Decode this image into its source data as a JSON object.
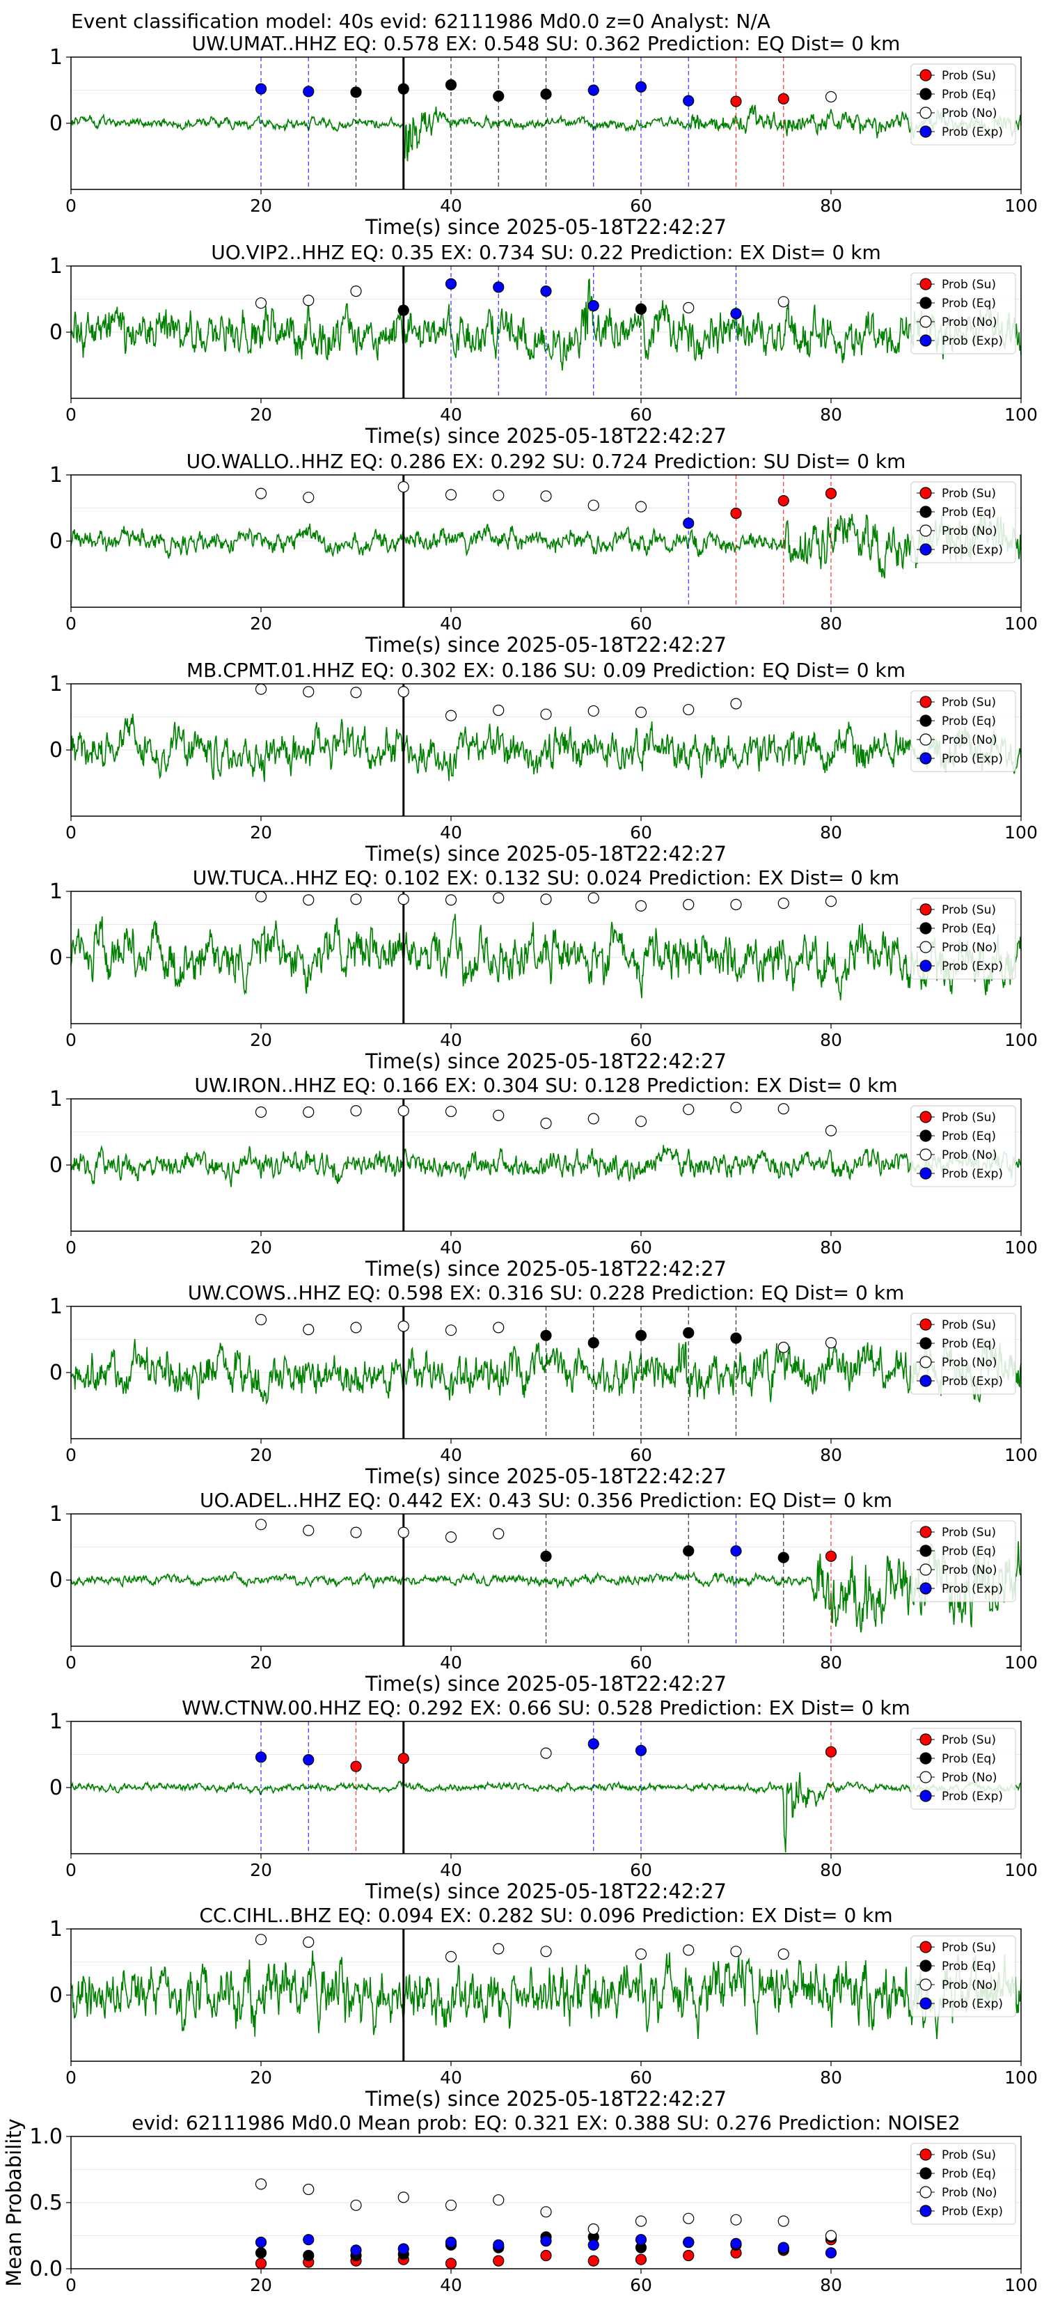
{
  "figure": {
    "suptitle": "Event classification model: 40s evid: 62111986 Md0.0 z=0 Analyst: N/A",
    "xlabel": "Time(s) since 2025-05-18T22:42:27",
    "legend": [
      "Prob (Su)",
      "Prob (Eq)",
      "Prob (No)",
      "Prob (Exp)"
    ],
    "colors": {
      "su": "#ff0000",
      "eq": "#000000",
      "no": "#ffffff",
      "exp": "#0000ff",
      "waveform": "#008000"
    }
  },
  "chart_data": [
    {
      "type": "line",
      "title": "UW.UMAT..HHZ   EQ: 0.578  EX: 0.548  SU: 0.362   Prediction: EQ    Dist= 0 km",
      "xlim": [
        0,
        100
      ],
      "ylim": [
        -1,
        1
      ],
      "xticks": [
        "0",
        "20",
        "40",
        "60",
        "80",
        "100"
      ],
      "yticks": [
        "1",
        "0"
      ],
      "waveform": {
        "amp": 0.1,
        "burst_at": 35,
        "burst_amp": 0.95,
        "late_start": 65,
        "late_amp": 0.22
      },
      "pick_time": 35,
      "points": [
        {
          "t": 20,
          "p": 0.52,
          "class": "exp"
        },
        {
          "t": 25,
          "p": 0.48,
          "class": "exp"
        },
        {
          "t": 30,
          "p": 0.47,
          "class": "eq"
        },
        {
          "t": 35,
          "p": 0.52,
          "class": "eq"
        },
        {
          "t": 40,
          "p": 0.58,
          "class": "eq"
        },
        {
          "t": 45,
          "p": 0.41,
          "class": "eq"
        },
        {
          "t": 50,
          "p": 0.44,
          "class": "eq"
        },
        {
          "t": 55,
          "p": 0.5,
          "class": "exp"
        },
        {
          "t": 60,
          "p": 0.55,
          "class": "exp"
        },
        {
          "t": 65,
          "p": 0.34,
          "class": "exp"
        },
        {
          "t": 70,
          "p": 0.33,
          "class": "su"
        },
        {
          "t": 75,
          "p": 0.37,
          "class": "su"
        },
        {
          "t": 80,
          "p": 0.4,
          "class": "no"
        }
      ]
    },
    {
      "type": "line",
      "title": "UO.VIP2..HHZ   EQ: 0.35  EX: 0.734  SU: 0.22   Prediction: EX    Dist= 0 km",
      "xlim": [
        0,
        100
      ],
      "ylim": [
        -1,
        1
      ],
      "xticks": [
        "0",
        "20",
        "40",
        "60",
        "80",
        "100"
      ],
      "yticks": [
        "1",
        "0"
      ],
      "waveform": {
        "amp": 0.45,
        "burst_at": 54,
        "burst_amp": 0.95,
        "late_start": 100,
        "late_amp": 0.45
      },
      "pick_time": 35,
      "points": [
        {
          "t": 20,
          "p": 0.44,
          "class": "no"
        },
        {
          "t": 25,
          "p": 0.48,
          "class": "no"
        },
        {
          "t": 30,
          "p": 0.62,
          "class": "no"
        },
        {
          "t": 35,
          "p": 0.33,
          "class": "eq"
        },
        {
          "t": 40,
          "p": 0.73,
          "class": "exp"
        },
        {
          "t": 45,
          "p": 0.68,
          "class": "exp"
        },
        {
          "t": 50,
          "p": 0.62,
          "class": "exp"
        },
        {
          "t": 55,
          "p": 0.4,
          "class": "exp"
        },
        {
          "t": 60,
          "p": 0.35,
          "class": "eq"
        },
        {
          "t": 65,
          "p": 0.37,
          "class": "no"
        },
        {
          "t": 70,
          "p": 0.28,
          "class": "exp"
        },
        {
          "t": 75,
          "p": 0.46,
          "class": "no"
        }
      ]
    },
    {
      "type": "line",
      "title": "UO.WALLO..HHZ   EQ: 0.286  EX: 0.292  SU: 0.724   Prediction: SU    Dist= 0 km",
      "xlim": [
        0,
        100
      ],
      "ylim": [
        -1,
        1
      ],
      "xticks": [
        "0",
        "20",
        "40",
        "60",
        "80",
        "100"
      ],
      "yticks": [
        "1",
        "0"
      ],
      "waveform": {
        "amp": 0.22,
        "burst_at": 80,
        "burst_amp": 0.5,
        "late_start": 75,
        "late_amp": 0.5
      },
      "pick_time": 35,
      "points": [
        {
          "t": 20,
          "p": 0.72,
          "class": "no"
        },
        {
          "t": 25,
          "p": 0.66,
          "class": "no"
        },
        {
          "t": 35,
          "p": 0.82,
          "class": "no"
        },
        {
          "t": 40,
          "p": 0.7,
          "class": "no"
        },
        {
          "t": 45,
          "p": 0.69,
          "class": "no"
        },
        {
          "t": 50,
          "p": 0.68,
          "class": "no"
        },
        {
          "t": 55,
          "p": 0.54,
          "class": "no"
        },
        {
          "t": 60,
          "p": 0.52,
          "class": "no"
        },
        {
          "t": 65,
          "p": 0.27,
          "class": "exp"
        },
        {
          "t": 70,
          "p": 0.42,
          "class": "su"
        },
        {
          "t": 75,
          "p": 0.61,
          "class": "su"
        },
        {
          "t": 80,
          "p": 0.72,
          "class": "su"
        }
      ]
    },
    {
      "type": "line",
      "title": "MB.CPMT.01.HHZ   EQ: 0.302  EX: 0.186  SU: 0.09   Prediction: EQ    Dist= 0 km",
      "xlim": [
        0,
        100
      ],
      "ylim": [
        -1,
        1
      ],
      "xticks": [
        "0",
        "20",
        "40",
        "60",
        "80",
        "100"
      ],
      "yticks": [
        "1",
        "0"
      ],
      "waveform": {
        "amp": 0.4,
        "burst_at": 100,
        "burst_amp": 0.4,
        "late_start": 100,
        "late_amp": 0.4
      },
      "pick_time": 35,
      "points": [
        {
          "t": 20,
          "p": 0.92,
          "class": "no"
        },
        {
          "t": 25,
          "p": 0.88,
          "class": "no"
        },
        {
          "t": 30,
          "p": 0.87,
          "class": "no"
        },
        {
          "t": 35,
          "p": 0.88,
          "class": "no"
        },
        {
          "t": 40,
          "p": 0.52,
          "class": "no"
        },
        {
          "t": 45,
          "p": 0.6,
          "class": "no"
        },
        {
          "t": 50,
          "p": 0.54,
          "class": "no"
        },
        {
          "t": 55,
          "p": 0.59,
          "class": "no"
        },
        {
          "t": 60,
          "p": 0.57,
          "class": "no"
        },
        {
          "t": 65,
          "p": 0.61,
          "class": "no"
        },
        {
          "t": 70,
          "p": 0.7,
          "class": "no"
        }
      ]
    },
    {
      "type": "line",
      "title": "UW.TUCA..HHZ   EQ: 0.102  EX: 0.132  SU: 0.024   Prediction: EX    Dist= 0 km",
      "xlim": [
        0,
        100
      ],
      "ylim": [
        -1,
        1
      ],
      "xticks": [
        "0",
        "20",
        "40",
        "60",
        "80",
        "100"
      ],
      "yticks": [
        "1",
        "0"
      ],
      "waveform": {
        "amp": 0.5,
        "burst_at": 100,
        "burst_amp": 0.5,
        "late_start": 100,
        "late_amp": 0.5
      },
      "pick_time": 35,
      "points": [
        {
          "t": 20,
          "p": 0.92,
          "class": "no"
        },
        {
          "t": 25,
          "p": 0.87,
          "class": "no"
        },
        {
          "t": 30,
          "p": 0.88,
          "class": "no"
        },
        {
          "t": 35,
          "p": 0.88,
          "class": "no"
        },
        {
          "t": 40,
          "p": 0.87,
          "class": "no"
        },
        {
          "t": 45,
          "p": 0.9,
          "class": "no"
        },
        {
          "t": 50,
          "p": 0.88,
          "class": "no"
        },
        {
          "t": 55,
          "p": 0.9,
          "class": "no"
        },
        {
          "t": 60,
          "p": 0.78,
          "class": "no"
        },
        {
          "t": 65,
          "p": 0.8,
          "class": "no"
        },
        {
          "t": 70,
          "p": 0.8,
          "class": "no"
        },
        {
          "t": 75,
          "p": 0.82,
          "class": "no"
        },
        {
          "t": 80,
          "p": 0.85,
          "class": "no"
        }
      ]
    },
    {
      "type": "line",
      "title": "UW.IRON..HHZ   EQ: 0.166  EX: 0.304  SU: 0.128   Prediction: EX    Dist= 0 km",
      "xlim": [
        0,
        100
      ],
      "ylim": [
        -1,
        1
      ],
      "xticks": [
        "0",
        "20",
        "40",
        "60",
        "80",
        "100"
      ],
      "yticks": [
        "1",
        "0"
      ],
      "waveform": {
        "amp": 0.25,
        "burst_at": 100,
        "burst_amp": 0.25,
        "late_start": 100,
        "late_amp": 0.25
      },
      "pick_time": 35,
      "points": [
        {
          "t": 20,
          "p": 0.8,
          "class": "no"
        },
        {
          "t": 25,
          "p": 0.8,
          "class": "no"
        },
        {
          "t": 30,
          "p": 0.82,
          "class": "no"
        },
        {
          "t": 35,
          "p": 0.82,
          "class": "no"
        },
        {
          "t": 40,
          "p": 0.81,
          "class": "no"
        },
        {
          "t": 45,
          "p": 0.75,
          "class": "no"
        },
        {
          "t": 50,
          "p": 0.63,
          "class": "no"
        },
        {
          "t": 55,
          "p": 0.7,
          "class": "no"
        },
        {
          "t": 60,
          "p": 0.66,
          "class": "no"
        },
        {
          "t": 65,
          "p": 0.84,
          "class": "no"
        },
        {
          "t": 70,
          "p": 0.87,
          "class": "no"
        },
        {
          "t": 75,
          "p": 0.85,
          "class": "no"
        },
        {
          "t": 80,
          "p": 0.52,
          "class": "no"
        }
      ]
    },
    {
      "type": "line",
      "title": "UW.COWS..HHZ   EQ: 0.598  EX: 0.316  SU: 0.228   Prediction: EQ    Dist= 0 km",
      "xlim": [
        0,
        100
      ],
      "ylim": [
        -1,
        1
      ],
      "xticks": [
        "0",
        "20",
        "40",
        "60",
        "80",
        "100"
      ],
      "yticks": [
        "1",
        "0"
      ],
      "waveform": {
        "amp": 0.45,
        "burst_at": 64,
        "burst_amp": 0.95,
        "late_start": 100,
        "late_amp": 0.45
      },
      "pick_time": 35,
      "points": [
        {
          "t": 20,
          "p": 0.8,
          "class": "no"
        },
        {
          "t": 25,
          "p": 0.65,
          "class": "no"
        },
        {
          "t": 30,
          "p": 0.68,
          "class": "no"
        },
        {
          "t": 35,
          "p": 0.7,
          "class": "no"
        },
        {
          "t": 40,
          "p": 0.64,
          "class": "no"
        },
        {
          "t": 45,
          "p": 0.68,
          "class": "no"
        },
        {
          "t": 50,
          "p": 0.56,
          "class": "eq"
        },
        {
          "t": 55,
          "p": 0.45,
          "class": "eq"
        },
        {
          "t": 60,
          "p": 0.56,
          "class": "eq"
        },
        {
          "t": 65,
          "p": 0.6,
          "class": "eq"
        },
        {
          "t": 70,
          "p": 0.52,
          "class": "eq"
        },
        {
          "t": 75,
          "p": 0.38,
          "class": "no"
        },
        {
          "t": 80,
          "p": 0.45,
          "class": "no"
        }
      ]
    },
    {
      "type": "line",
      "title": "UO.ADEL..HHZ   EQ: 0.442  EX: 0.43  SU: 0.356   Prediction: EQ    Dist= 0 km",
      "xlim": [
        0,
        100
      ],
      "ylim": [
        -1,
        1
      ],
      "xticks": [
        "0",
        "20",
        "40",
        "60",
        "80",
        "100"
      ],
      "yticks": [
        "1",
        "0"
      ],
      "waveform": {
        "amp": 0.1,
        "burst_at": 100,
        "burst_amp": 0.1,
        "late_start": 78,
        "late_amp": 0.75
      },
      "pick_time": 35,
      "points": [
        {
          "t": 20,
          "p": 0.84,
          "class": "no"
        },
        {
          "t": 25,
          "p": 0.75,
          "class": "no"
        },
        {
          "t": 30,
          "p": 0.72,
          "class": "no"
        },
        {
          "t": 35,
          "p": 0.72,
          "class": "no"
        },
        {
          "t": 40,
          "p": 0.65,
          "class": "no"
        },
        {
          "t": 45,
          "p": 0.7,
          "class": "no"
        },
        {
          "t": 50,
          "p": 0.36,
          "class": "eq"
        },
        {
          "t": 65,
          "p": 0.44,
          "class": "eq"
        },
        {
          "t": 70,
          "p": 0.44,
          "class": "exp"
        },
        {
          "t": 75,
          "p": 0.34,
          "class": "eq"
        },
        {
          "t": 80,
          "p": 0.36,
          "class": "su"
        }
      ]
    },
    {
      "type": "line",
      "title": "WW.CTNW.00.HHZ   EQ: 0.292  EX: 0.66  SU: 0.528   Prediction: EX    Dist= 0 km",
      "xlim": [
        0,
        100
      ],
      "ylim": [
        -1,
        1
      ],
      "xticks": [
        "0",
        "20",
        "40",
        "60",
        "80",
        "100"
      ],
      "yticks": [
        "1",
        "0"
      ],
      "waveform": {
        "amp": 0.08,
        "burst_at": 75,
        "burst_amp": 0.9,
        "late_start": 100,
        "late_amp": 0.08
      },
      "pick_time": 35,
      "points": [
        {
          "t": 20,
          "p": 0.46,
          "class": "exp"
        },
        {
          "t": 25,
          "p": 0.42,
          "class": "exp"
        },
        {
          "t": 30,
          "p": 0.32,
          "class": "su"
        },
        {
          "t": 35,
          "p": 0.44,
          "class": "su"
        },
        {
          "t": 50,
          "p": 0.52,
          "class": "no"
        },
        {
          "t": 55,
          "p": 0.66,
          "class": "exp"
        },
        {
          "t": 60,
          "p": 0.56,
          "class": "exp"
        },
        {
          "t": 80,
          "p": 0.54,
          "class": "su"
        }
      ]
    },
    {
      "type": "line",
      "title": "CC.CIHL..BHZ   EQ: 0.094  EX: 0.282  SU: 0.096   Prediction: EX    Dist= 0 km",
      "xlim": [
        0,
        100
      ],
      "ylim": [
        -1,
        1
      ],
      "xticks": [
        "0",
        "20",
        "40",
        "60",
        "80",
        "100"
      ],
      "yticks": [
        "1",
        "0"
      ],
      "waveform": {
        "amp": 0.6,
        "burst_at": 100,
        "burst_amp": 0.6,
        "late_start": 100,
        "late_amp": 0.6
      },
      "pick_time": 35,
      "points": [
        {
          "t": 20,
          "p": 0.84,
          "class": "no"
        },
        {
          "t": 25,
          "p": 0.8,
          "class": "no"
        },
        {
          "t": 40,
          "p": 0.58,
          "class": "no"
        },
        {
          "t": 45,
          "p": 0.7,
          "class": "no"
        },
        {
          "t": 50,
          "p": 0.66,
          "class": "no"
        },
        {
          "t": 60,
          "p": 0.62,
          "class": "no"
        },
        {
          "t": 65,
          "p": 0.68,
          "class": "no"
        },
        {
          "t": 70,
          "p": 0.66,
          "class": "no"
        },
        {
          "t": 75,
          "p": 0.62,
          "class": "no"
        }
      ]
    },
    {
      "type": "scatter",
      "title": "evid: 62111986  Md0.0    Mean prob:   EQ: 0.321  EX: 0.388  SU: 0.276   Prediction: NOISE2",
      "ylabel": "Mean Probability",
      "xlim": [
        0,
        100
      ],
      "ylim": [
        0,
        1
      ],
      "xticks": [
        "0",
        "20",
        "40",
        "60",
        "80",
        "100"
      ],
      "yticks": [
        "0.0",
        "0.5",
        "1.0"
      ],
      "series": [
        {
          "name": "Prob (Su)",
          "class": "su",
          "x": [
            20,
            25,
            30,
            35,
            40,
            45,
            50,
            55,
            60,
            65,
            70,
            75,
            80
          ],
          "values": [
            0.04,
            0.05,
            0.06,
            0.07,
            0.04,
            0.06,
            0.1,
            0.06,
            0.07,
            0.1,
            0.12,
            0.14,
            0.22
          ]
        },
        {
          "name": "Prob (Eq)",
          "class": "eq",
          "x": [
            20,
            25,
            30,
            35,
            40,
            45,
            50,
            55,
            60,
            65,
            70,
            75,
            80
          ],
          "values": [
            0.12,
            0.1,
            0.1,
            0.11,
            0.18,
            0.16,
            0.24,
            0.24,
            0.16,
            0.2,
            0.18,
            0.15,
            0.24
          ]
        },
        {
          "name": "Prob (No)",
          "class": "no",
          "x": [
            20,
            25,
            30,
            35,
            40,
            45,
            50,
            55,
            60,
            65,
            70,
            75,
            80
          ],
          "values": [
            0.64,
            0.6,
            0.48,
            0.54,
            0.48,
            0.52,
            0.43,
            0.3,
            0.36,
            0.38,
            0.37,
            0.36,
            0.25
          ]
        },
        {
          "name": "Prob (Exp)",
          "class": "exp",
          "x": [
            20,
            25,
            30,
            35,
            40,
            45,
            50,
            55,
            60,
            65,
            70,
            75,
            80
          ],
          "values": [
            0.2,
            0.22,
            0.14,
            0.15,
            0.2,
            0.18,
            0.21,
            0.18,
            0.22,
            0.2,
            0.19,
            0.16,
            0.12
          ]
        }
      ]
    }
  ]
}
